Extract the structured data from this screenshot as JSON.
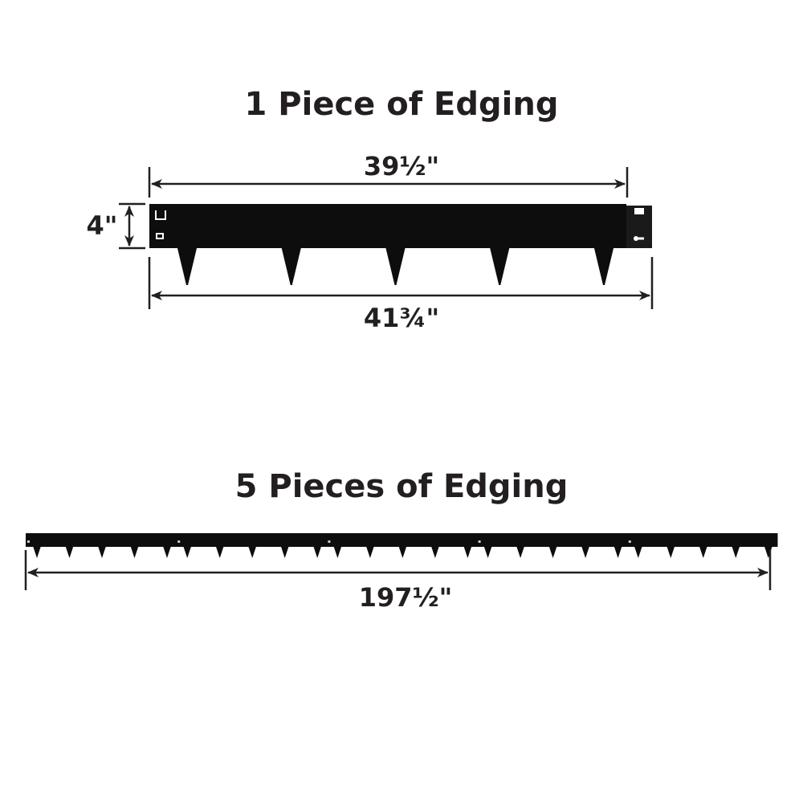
{
  "single": {
    "title": "1 Piece of Edging",
    "top_length": "39½\"",
    "height": "4\"",
    "total_length": "41¾\"",
    "spikes": 5
  },
  "multi": {
    "title": "5 Pieces of Edging",
    "total_length": "197½\"",
    "pieces": 5,
    "spikes_per_piece": 5
  },
  "colors": {
    "edging": "#0d0d0d",
    "ink": "#231f20"
  }
}
